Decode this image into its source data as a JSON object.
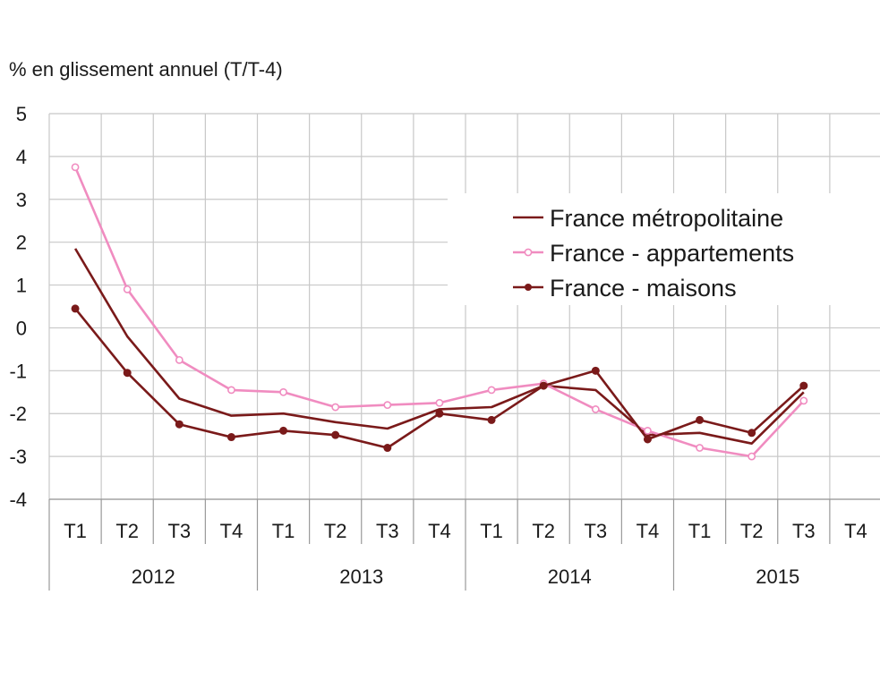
{
  "chart_data": {
    "type": "line",
    "ylabel": "% en glissement annuel (T/T-4)",
    "ylim": [
      -4,
      5
    ],
    "yticks": [
      5,
      4,
      3,
      2,
      1,
      0,
      -1,
      -2,
      -3,
      -4
    ],
    "quarters": [
      "T1",
      "T2",
      "T3",
      "T4",
      "T1",
      "T2",
      "T3",
      "T4",
      "T1",
      "T2",
      "T3",
      "T4",
      "T1",
      "T2",
      "T3",
      "T4"
    ],
    "years": [
      "2012",
      "2013",
      "2014",
      "2015"
    ],
    "grid": true,
    "legend_position": "upper-right",
    "series": [
      {
        "name": "France métropolitaine",
        "color": "#7a1a1a",
        "marker": "none",
        "values": [
          1.85,
          -0.2,
          -1.65,
          -2.05,
          -2.0,
          -2.2,
          -2.35,
          -1.9,
          -1.85,
          -1.35,
          -1.45,
          -2.5,
          -2.45,
          -2.7,
          -1.5,
          null
        ]
      },
      {
        "name": "France - appartements",
        "color": "#f08cc0",
        "marker": "open-circle",
        "values": [
          3.75,
          0.9,
          -0.75,
          -1.45,
          -1.5,
          -1.85,
          -1.8,
          -1.75,
          -1.45,
          -1.3,
          -1.9,
          -2.4,
          -2.8,
          -3.0,
          -1.7,
          null
        ]
      },
      {
        "name": "France - maisons",
        "color": "#7a1a1a",
        "marker": "filled-circle",
        "values": [
          0.45,
          -1.05,
          -2.25,
          -2.55,
          -2.4,
          -2.5,
          -2.8,
          -2.0,
          -2.15,
          -1.35,
          -1.0,
          -2.6,
          -2.15,
          -2.45,
          -1.35,
          null
        ]
      }
    ]
  }
}
